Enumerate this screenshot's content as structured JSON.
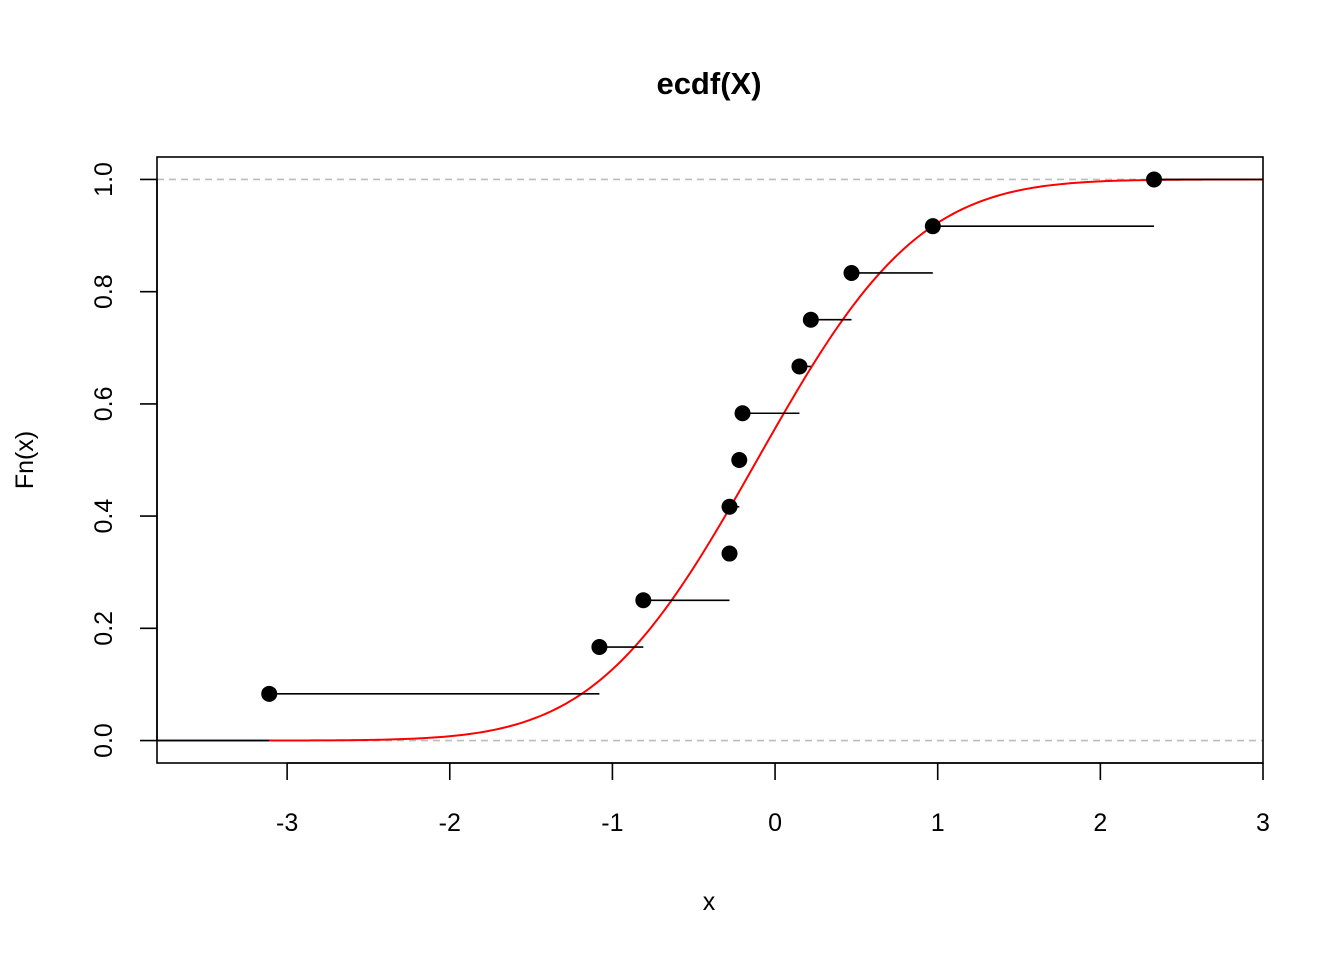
{
  "chart_data": {
    "type": "step",
    "title": "ecdf(X)",
    "xlabel": "x",
    "ylabel": "Fn(x)",
    "xlim": [
      -3.8,
      3.0
    ],
    "ylim": [
      -0.04,
      1.04
    ],
    "x_ticks": [
      -3,
      -2,
      -1,
      0,
      1,
      2,
      3
    ],
    "x_tick_labels": [
      "-3",
      "-2",
      "-1",
      "0",
      "1",
      "2",
      "3"
    ],
    "y_ticks": [
      0.0,
      0.2,
      0.4,
      0.6,
      0.8,
      1.0
    ],
    "y_tick_labels": [
      "0.0",
      "0.2",
      "0.4",
      "0.6",
      "0.8",
      "1.0"
    ],
    "grid": false,
    "reference_lines": [
      0.0,
      1.0
    ],
    "series": [
      {
        "kind": "ecdf-step",
        "color": "#000000",
        "points": [
          {
            "x": -3.11,
            "y": 0.0833
          },
          {
            "x": -1.08,
            "y": 0.1667
          },
          {
            "x": -0.81,
            "y": 0.25
          },
          {
            "x": -0.28,
            "y": 0.3333
          },
          {
            "x": -0.28,
            "y": 0.4167
          },
          {
            "x": -0.22,
            "y": 0.5
          },
          {
            "x": -0.2,
            "y": 0.5833
          },
          {
            "x": 0.15,
            "y": 0.6667
          },
          {
            "x": 0.22,
            "y": 0.75
          },
          {
            "x": 0.47,
            "y": 0.8333
          },
          {
            "x": 0.97,
            "y": 0.9167
          },
          {
            "x": 2.33,
            "y": 1.0
          }
        ]
      },
      {
        "kind": "theoretical-cdf",
        "distribution": "normal",
        "mean": -0.11,
        "sd": 0.78,
        "color": "#ff0000"
      }
    ]
  }
}
